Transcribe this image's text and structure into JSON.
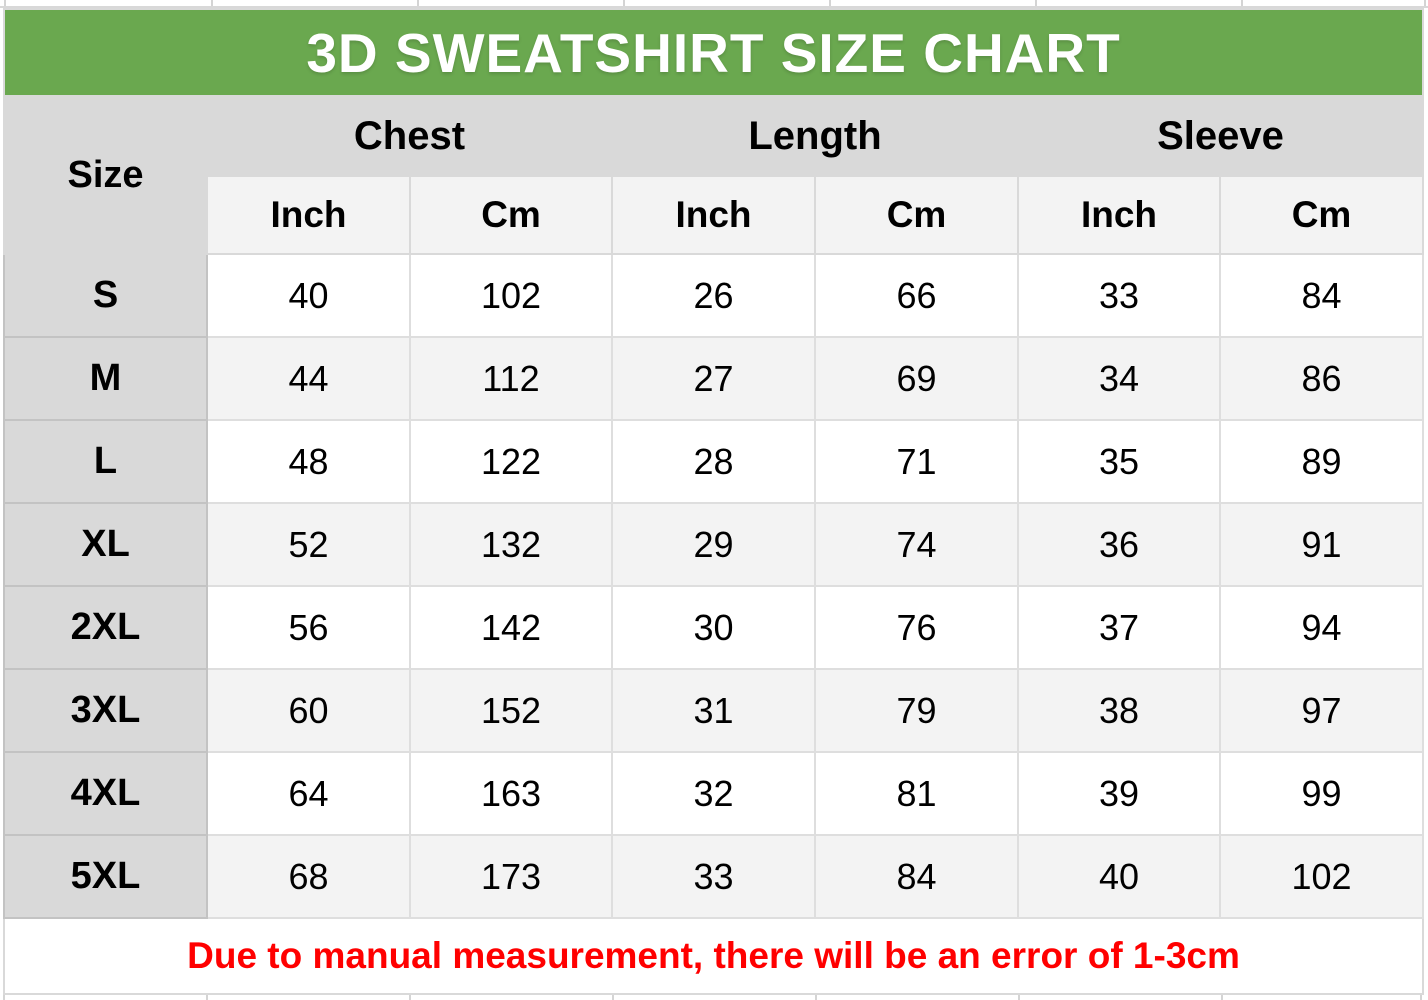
{
  "title": "3D SWEATSHIRT SIZE CHART",
  "header": {
    "size_label": "Size",
    "groups": [
      {
        "label": "Chest"
      },
      {
        "label": "Length"
      },
      {
        "label": "Sleeve"
      }
    ],
    "units": [
      "Inch",
      "Cm",
      "Inch",
      "Cm",
      "Inch",
      "Cm"
    ]
  },
  "note": {
    "text": "Due to manual measurement, there will be an error of 1-3cm"
  },
  "colors": {
    "title_bar_green": "#6aa84f",
    "title_text": "#ffffff",
    "header_gray": "#d9d9d9",
    "subheader_gray": "#f3f3f3",
    "row_alt_gray": "#f3f3f3",
    "row_white": "#ffffff",
    "note_red": "#ff0000",
    "gridline_gray": "#d4d4d4"
  },
  "chart_data": {
    "type": "table",
    "title": "3D SWEATSHIRT SIZE CHART",
    "column_groups": [
      "Size",
      "Chest",
      "Chest",
      "Length",
      "Length",
      "Sleeve",
      "Sleeve"
    ],
    "columns": [
      "Size",
      "Chest Inch",
      "Chest Cm",
      "Length Inch",
      "Length Cm",
      "Sleeve Inch",
      "Sleeve Cm"
    ],
    "rows": [
      {
        "size": "S",
        "values": [
          40,
          102,
          26,
          66,
          33,
          84
        ]
      },
      {
        "size": "M",
        "values": [
          44,
          112,
          27,
          69,
          34,
          86
        ]
      },
      {
        "size": "L",
        "values": [
          48,
          122,
          28,
          71,
          35,
          89
        ]
      },
      {
        "size": "XL",
        "values": [
          52,
          132,
          29,
          74,
          36,
          91
        ]
      },
      {
        "size": "2XL",
        "values": [
          56,
          142,
          30,
          76,
          37,
          94
        ]
      },
      {
        "size": "3XL",
        "values": [
          60,
          152,
          31,
          79,
          38,
          97
        ]
      },
      {
        "size": "4XL",
        "values": [
          64,
          163,
          32,
          81,
          39,
          99
        ]
      },
      {
        "size": "5XL",
        "values": [
          68,
          173,
          33,
          84,
          40,
          102
        ]
      }
    ],
    "note": "Due to manual measurement, there will be an error of 1-3cm"
  }
}
